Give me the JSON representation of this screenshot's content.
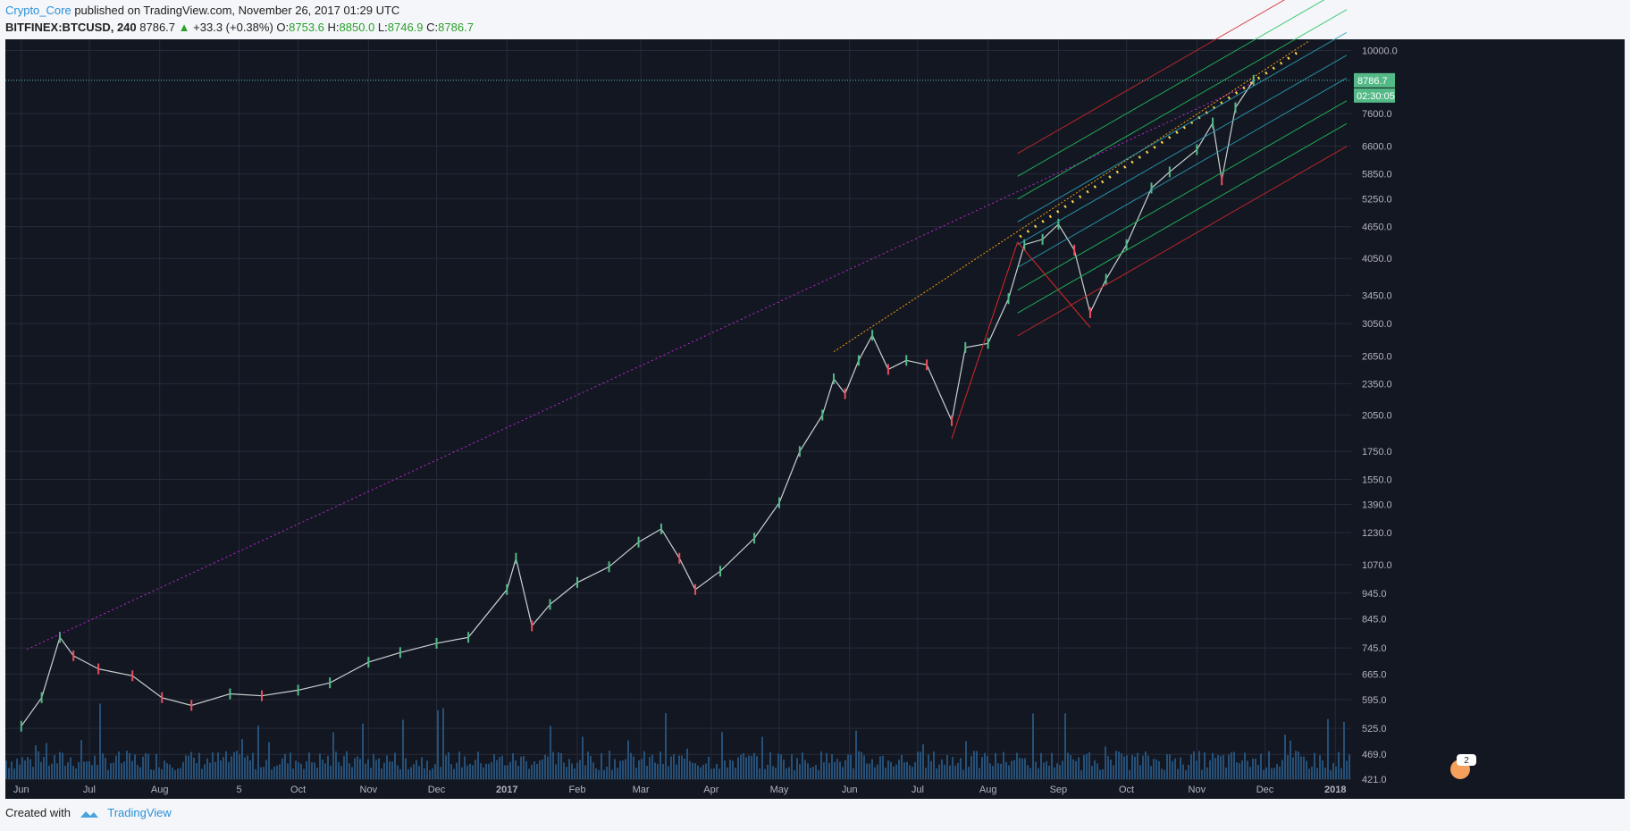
{
  "header": {
    "author": "Crypto_Core",
    "published_text": "published on TradingView.com, November 26, 2017 01:29 UTC",
    "symbol": "BITFINEX:BTCUSD, 240",
    "last": "8786.7",
    "change": "+33.3 (+0.38%)",
    "open_label": "O:",
    "open": "8753.6",
    "high_label": "H:",
    "high": "8850.0",
    "low_label": "L:",
    "low": "8746.9",
    "close_label": "C:",
    "close": "8786.7"
  },
  "footer": {
    "created_with": "Created with",
    "brand": "TradingView"
  },
  "chart_data": {
    "type": "line",
    "title": "BITFINEX:BTCUSD, 240",
    "scale": "log",
    "ylim": [
      421,
      10500
    ],
    "y_ticks": [
      "10000.0",
      "8786.7",
      "7600.0",
      "6600.0",
      "5850.0",
      "5250.0",
      "4650.0",
      "4050.0",
      "3450.0",
      "3050.0",
      "2650.0",
      "2350.0",
      "2050.0",
      "1750.0",
      "1550.0",
      "1390.0",
      "1230.0",
      "1070.0",
      "945.0",
      "845.0",
      "745.0",
      "665.0",
      "595.0",
      "525.0",
      "469.0",
      "421.0"
    ],
    "price_label": "8786.7",
    "countdown_label": "02:30:05",
    "x_ticks": [
      "Jun",
      "Jul",
      "Aug",
      "5",
      "Oct",
      "Nov",
      "Dec",
      "2017",
      "Feb",
      "Mar",
      "Apr",
      "May",
      "Jun",
      "Jul",
      "Aug",
      "Sep",
      "Oct",
      "Nov",
      "Dec",
      "2018"
    ],
    "series": [
      {
        "name": "BTCUSD",
        "x": [
          "2016-06-01",
          "2016-06-10",
          "2016-06-18",
          "2016-06-24",
          "2016-07-05",
          "2016-07-20",
          "2016-08-02",
          "2016-08-15",
          "2016-09-01",
          "2016-09-15",
          "2016-10-01",
          "2016-10-15",
          "2016-11-01",
          "2016-11-15",
          "2016-12-01",
          "2016-12-15",
          "2017-01-01",
          "2017-01-05",
          "2017-01-12",
          "2017-01-20",
          "2017-02-01",
          "2017-02-15",
          "2017-02-28",
          "2017-03-10",
          "2017-03-18",
          "2017-03-25",
          "2017-04-05",
          "2017-04-20",
          "2017-05-01",
          "2017-05-10",
          "2017-05-20",
          "2017-05-25",
          "2017-05-30",
          "2017-06-05",
          "2017-06-11",
          "2017-06-18",
          "2017-06-26",
          "2017-07-05",
          "2017-07-16",
          "2017-07-22",
          "2017-08-01",
          "2017-08-10",
          "2017-08-17",
          "2017-08-25",
          "2017-09-01",
          "2017-09-08",
          "2017-09-15",
          "2017-09-22",
          "2017-10-01",
          "2017-10-12",
          "2017-10-20",
          "2017-11-01",
          "2017-11-08",
          "2017-11-12",
          "2017-11-18",
          "2017-11-26"
        ],
        "values": [
          530,
          600,
          780,
          720,
          680,
          660,
          600,
          580,
          610,
          605,
          620,
          640,
          700,
          730,
          760,
          780,
          960,
          1100,
          820,
          900,
          990,
          1060,
          1180,
          1250,
          1100,
          960,
          1040,
          1200,
          1400,
          1750,
          2050,
          2400,
          2250,
          2600,
          2900,
          2500,
          2600,
          2550,
          2000,
          2750,
          2800,
          3400,
          4300,
          4400,
          4700,
          4200,
          3200,
          3700,
          4300,
          5500,
          5900,
          6500,
          7300,
          5700,
          7800,
          8786.7
        ]
      }
    ],
    "volume": "shown as histogram along the bottom of the chart",
    "annotations": {
      "event_badge": "2"
    }
  }
}
